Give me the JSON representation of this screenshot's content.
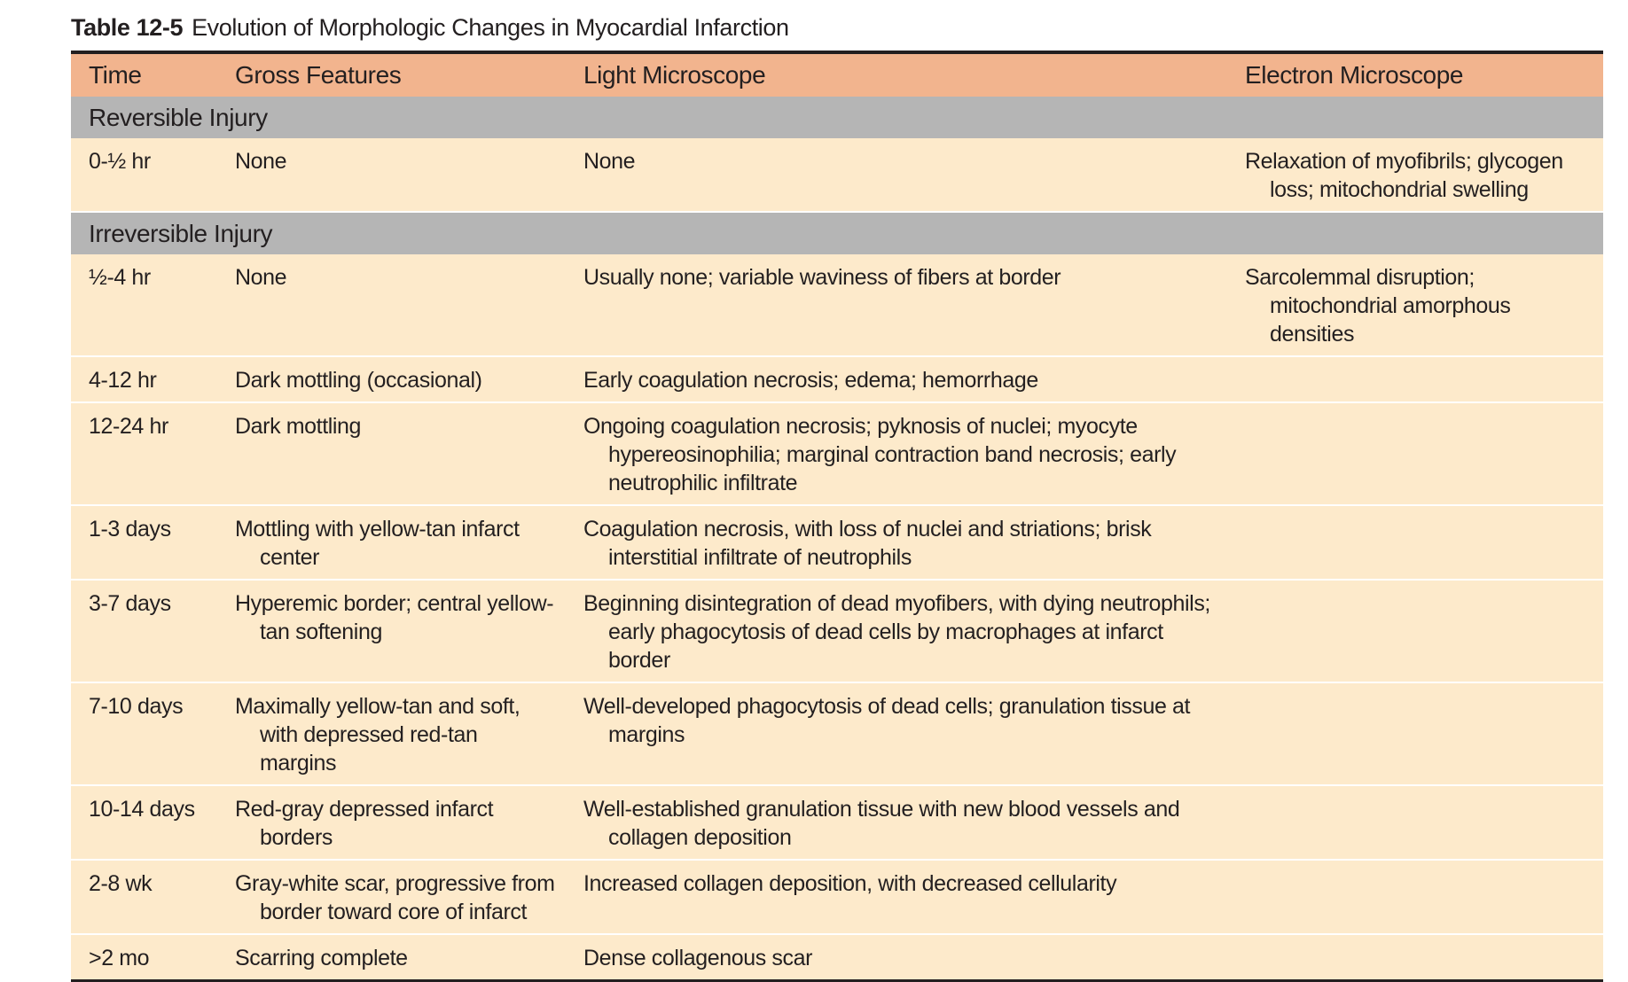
{
  "table": {
    "caption_number": "Table 12-5",
    "caption_title": "Evolution of Morphologic Changes in Myocardial Infarction",
    "headers": {
      "time": "Time",
      "gross": "Gross Features",
      "light": "Light Microscope",
      "em": "Electron Microscope"
    },
    "sections": [
      {
        "label": "Reversible Injury",
        "rows": [
          {
            "time": "0-½ hr",
            "gross": "None",
            "light": "None",
            "em": "Relaxation of myofibrils; glycogen loss; mitochondrial swelling"
          }
        ]
      },
      {
        "label": "Irreversible Injury",
        "rows": [
          {
            "time": "½-4 hr",
            "gross": "None",
            "light": "Usually none; variable waviness of fibers at border",
            "em": "Sarcolemmal disruption; mitochondrial amorphous densities"
          },
          {
            "time": "4-12 hr",
            "gross": "Dark mottling (occasional)",
            "light": "Early coagulation necrosis; edema; hemorrhage",
            "em": ""
          },
          {
            "time": "12-24 hr",
            "gross": "Dark mottling",
            "light": "Ongoing coagulation necrosis; pyknosis of nuclei; myocyte hypereosinophilia; marginal contraction band necrosis; early neutrophilic infiltrate",
            "em": ""
          },
          {
            "time": "1-3 days",
            "gross": "Mottling with yellow-tan infarct center",
            "light": "Coagulation necrosis, with loss of nuclei and striations; brisk interstitial infiltrate of neutrophils",
            "em": ""
          },
          {
            "time": "3-7 days",
            "gross": "Hyperemic border; central yellow-tan softening",
            "light": "Beginning disintegration of dead myofibers, with dying neutrophils; early phagocytosis of dead cells by macrophages at infarct border",
            "em": ""
          },
          {
            "time": "7-10 days",
            "gross": "Maximally yellow-tan and soft, with depressed red-tan margins",
            "light": "Well-developed phagocytosis of dead cells; granulation tissue at margins",
            "em": ""
          },
          {
            "time": "10-14 days",
            "gross": "Red-gray depressed infarct borders",
            "light": "Well-established granulation tissue with new blood vessels and collagen deposition",
            "em": ""
          },
          {
            "time": "2-8 wk",
            "gross": "Gray-white scar, progressive from border toward core of infarct",
            "light": "Increased collagen deposition, with decreased cellularity",
            "em": ""
          },
          {
            "time": ">2 mo",
            "gross": "Scarring complete",
            "light": "Dense collagenous scar",
            "em": ""
          }
        ]
      }
    ]
  }
}
